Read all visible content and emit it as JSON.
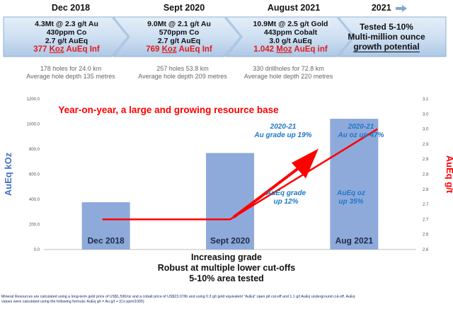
{
  "timeline": {
    "stages": [
      {
        "year": "Dec 2018",
        "line1": "4.3Mt @ 2.3 g/t Au",
        "line2": "430ppm Co",
        "line3": "2.7 g/t AuEq",
        "highlight_value": "377",
        "highlight_unit": "Koz",
        "highlight_rest": "AuEq Inf",
        "note1": "178 holes for 24.0 km",
        "note2": "Average hole depth 135 metres"
      },
      {
        "year": "Sept 2020",
        "line1": "9.0Mt @ 2.1 g/t Au",
        "line2": "570ppm Co",
        "line3": "2.7 g/t AuEq",
        "highlight_value": "769",
        "highlight_unit": "Koz",
        "highlight_rest": "AuEq Inf",
        "note1": "257 holes 53.8 km",
        "note2": "Average hole depth 209 metres"
      },
      {
        "year": "August 2021",
        "line1": "10.9Mt @ 2.5 g/t Gold",
        "line2": "443ppm Cobalt",
        "line3": "3.0 g/t AuEq",
        "highlight_value": "1.042",
        "highlight_unit": "Moz",
        "highlight_rest": "AuEq inf",
        "note1": "330 drillholes for 72.8 km",
        "note2": "Average hole depth 220 metres"
      }
    ],
    "final": {
      "year": "2021",
      "arrow_icon": "arrow-right-icon",
      "line1": "Tested 5-10%",
      "line2": "Multi-million ounce",
      "line3": "growth potential"
    }
  },
  "chart_data": {
    "type": "bar",
    "title": "Year-on-year, a large and growing resource base",
    "categories": [
      "Dec 2018",
      "Sept 2020",
      "Aug 2021"
    ],
    "values": [
      377,
      769,
      1042
    ],
    "ylabel": "AuEq kOz",
    "ylim": [
      0,
      1200
    ],
    "yticks": [
      "0.0",
      "200.0",
      "400.0",
      "600.0",
      "800.0",
      "1000.0",
      "1200.0"
    ],
    "y2label": "AuEq g/t",
    "y2lim": [
      2.6,
      3.1
    ],
    "y2ticks": [
      "2.6",
      "2.6",
      "2.7",
      "2.7",
      "2.8",
      "2.8",
      "2.9",
      "2.9",
      "3.0",
      "3.0",
      "3.1"
    ],
    "grade_line": {
      "x": [
        0,
        1,
        2
      ],
      "y": [
        2.7,
        2.7,
        3.0
      ]
    },
    "annotations": [
      {
        "line1": "AuEq grade",
        "line2": "up 12%"
      },
      {
        "line1": "AuEq oz",
        "line2": "up 35%"
      },
      {
        "line1": "2020-21",
        "line2": "Au grade up 19%"
      },
      {
        "line1": "2020-21",
        "line2": "Au oz up 47%"
      }
    ],
    "grid": false,
    "colors": {
      "bar": "#8eaadb",
      "line": "#ff0000",
      "axis_title": "#4472c4",
      "axis2_title": "#ff0000",
      "annotation": "#1f77c8"
    }
  },
  "summary": {
    "line1": "Increasing grade",
    "line2": "Robust at multiple lower cut-offs",
    "line3": "5-10% area tested"
  },
  "footnote": {
    "line1": "Mineral Resources are calculated using a long-term gold price of US$1,590/oz and a cobalt price of US$23.07/lb and using 0.3 g/t gold equivalent \"AuEq\" open pit cut-off and 1.1 g/t AuEq underground cut-off. AuEq",
    "line2": "values were calculated using the following formula: AuEq g/t = Au g/t + (Co ppm/1005)"
  }
}
